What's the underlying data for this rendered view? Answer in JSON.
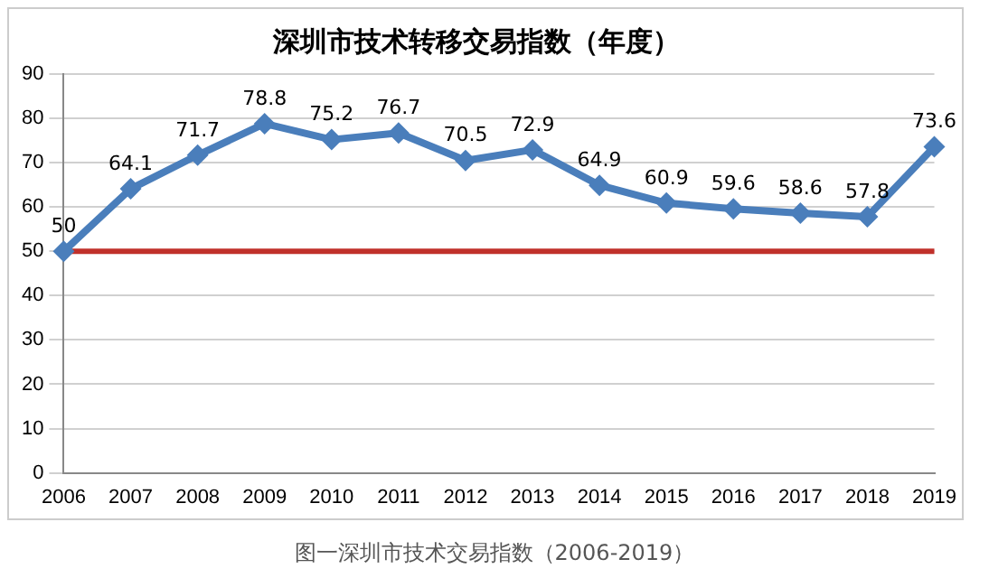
{
  "chart_data": {
    "type": "line",
    "title": "深圳市技术转移交易指数（年度）",
    "categories": [
      "2006",
      "2007",
      "2008",
      "2009",
      "2010",
      "2011",
      "2012",
      "2013",
      "2014",
      "2015",
      "2016",
      "2017",
      "2018",
      "2019"
    ],
    "series": [
      {
        "color": "#4a7ebb",
        "values": [
          50,
          64.1,
          71.7,
          78.8,
          75.2,
          76.7,
          70.5,
          72.9,
          64.9,
          60.9,
          59.6,
          58.6,
          57.8,
          73.6
        ]
      }
    ],
    "ylim": [
      0,
      90
    ],
    "yticks": [
      0,
      10,
      20,
      30,
      40,
      50,
      60,
      70,
      80,
      90
    ],
    "grid": "y",
    "legend": false,
    "marker": "diamond",
    "line_style": "solid",
    "data_labels": true,
    "ref_lines": [
      {
        "axis": "y",
        "value": 50,
        "color": "#c0312b"
      }
    ],
    "annotations": [
      "图一深圳市技术交易指数（2006-2019）"
    ]
  }
}
